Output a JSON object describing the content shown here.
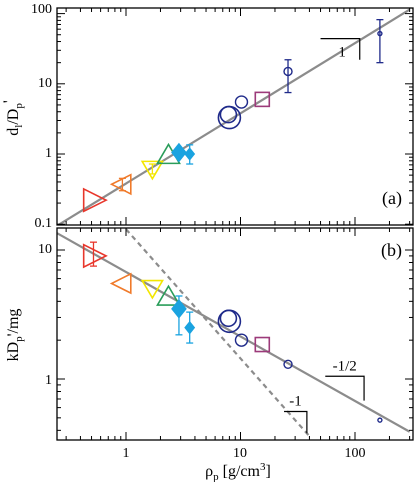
{
  "colors": {
    "frame": "#000000",
    "fit_line": "#8c8c8c",
    "dashed_line": "#8c8c8c",
    "red": "#e8362b",
    "orange": "#f07a2a",
    "yellow": "#f3e600",
    "green": "#2a9d5a",
    "cyan": "#1aa3e0",
    "navy": "#1f2a8a",
    "purple": "#9c3a7a"
  },
  "chart_data": [
    {
      "type": "scatter",
      "panel": "(a)",
      "ylabel": "d_l/D_p'",
      "xlabel": "",
      "x_scale": "log",
      "y_scale": "log",
      "xlim": [
        0.25,
        300
      ],
      "ylim": [
        0.1,
        100
      ],
      "y_ticks": [
        "0.1",
        "1",
        "10",
        "100"
      ],
      "points": [
        {
          "x": 0.52,
          "y": 0.22,
          "marker": "triangle-right",
          "color": "red",
          "size": 14
        },
        {
          "x": 0.93,
          "y": 0.37,
          "marker": "triangle-left",
          "color": "orange",
          "size": 12,
          "err": [
            0.3,
            0.45
          ]
        },
        {
          "x": 1.7,
          "y": 0.62,
          "marker": "triangle-down",
          "color": "yellow",
          "size": 12,
          "err": [
            0.52,
            0.72
          ]
        },
        {
          "x": 2.35,
          "y": 0.95,
          "marker": "triangle-up",
          "color": "green",
          "size": 13
        },
        {
          "x": 2.9,
          "y": 1.05,
          "marker": "diamond",
          "color": "cyan",
          "size": 9
        },
        {
          "x": 3.6,
          "y": 1.0,
          "marker": "diamond-small",
          "color": "cyan",
          "size": 6,
          "err": [
            0.72,
            1.35
          ]
        },
        {
          "x": 8.0,
          "y": 3.3,
          "marker": "circle",
          "color": "navy",
          "size": 11
        },
        {
          "x": 10.2,
          "y": 5.5,
          "marker": "circle",
          "color": "navy",
          "size": 6
        },
        {
          "x": 15.5,
          "y": 6.0,
          "marker": "square",
          "color": "purple",
          "size": 14
        },
        {
          "x": 26.0,
          "y": 15.0,
          "marker": "circle",
          "color": "navy",
          "size": 4,
          "err": [
            7.5,
            22.0
          ]
        },
        {
          "x": 165.0,
          "y": 52.0,
          "marker": "circle",
          "color": "navy",
          "size": 2,
          "err": [
            20.0,
            82.0
          ]
        }
      ],
      "fit_lines": [
        {
          "name": "",
          "slope": 1,
          "x": [
            0.25,
            300
          ],
          "y": [
            0.095,
            114
          ],
          "style": "solid"
        }
      ],
      "annotations": [
        {
          "text": "1",
          "type": "slope-triangle",
          "x": [
            50,
            110
          ],
          "y": [
            22,
            44
          ]
        }
      ]
    },
    {
      "type": "scatter",
      "panel": "(b)",
      "ylabel": "kD_p'/mg",
      "xlabel": "ρ_p [g/cm³]",
      "x_scale": "log",
      "y_scale": "log",
      "xlim": [
        0.25,
        300
      ],
      "ylim": [
        0.35,
        15
      ],
      "x_ticks": [
        "1",
        "10",
        "100"
      ],
      "y_ticks": [
        "1",
        "10"
      ],
      "points": [
        {
          "x": 0.52,
          "y": 9.0,
          "marker": "triangle-right",
          "color": "red",
          "size": 14,
          "err": [
            7.5,
            11.5
          ]
        },
        {
          "x": 0.93,
          "y": 5.5,
          "marker": "triangle-left",
          "color": "orange",
          "size": 12
        },
        {
          "x": 1.7,
          "y": 5.1,
          "marker": "triangle-down",
          "color": "yellow",
          "size": 12
        },
        {
          "x": 2.35,
          "y": 4.3,
          "marker": "triangle-up",
          "color": "green",
          "size": 13
        },
        {
          "x": 2.9,
          "y": 3.5,
          "marker": "diamond",
          "color": "cyan",
          "size": 9,
          "err": [
            2.2,
            4.4
          ]
        },
        {
          "x": 3.6,
          "y": 2.5,
          "marker": "diamond-small",
          "color": "cyan",
          "size": 6,
          "err": [
            1.9,
            3.3
          ]
        },
        {
          "x": 8.0,
          "y": 2.8,
          "marker": "circle",
          "color": "navy",
          "size": 11
        },
        {
          "x": 10.2,
          "y": 2.0,
          "marker": "circle",
          "color": "navy",
          "size": 6
        },
        {
          "x": 15.5,
          "y": 1.85,
          "marker": "square",
          "color": "purple",
          "size": 14
        },
        {
          "x": 26.0,
          "y": 1.3,
          "marker": "circle",
          "color": "navy",
          "size": 4
        },
        {
          "x": 165.0,
          "y": 0.48,
          "marker": "circle",
          "color": "navy",
          "size": 2
        }
      ],
      "fit_lines": [
        {
          "name": "",
          "slope": -0.5,
          "x": [
            0.25,
            300
          ],
          "y": [
            13.5,
            0.39
          ],
          "style": "solid"
        },
        {
          "name": "",
          "slope": -1,
          "x": [
            1.0,
            40
          ],
          "y": [
            14.5,
            0.36
          ],
          "style": "dashed"
        }
      ],
      "annotations": [
        {
          "text": "-1/2",
          "type": "slope-triangle",
          "x": [
            55,
            120
          ],
          "y": [
            0.68,
            1.05
          ]
        },
        {
          "text": "-1",
          "type": "slope-triangle",
          "x": [
            24,
            38
          ],
          "y": [
            0.38,
            0.56
          ]
        }
      ]
    }
  ]
}
